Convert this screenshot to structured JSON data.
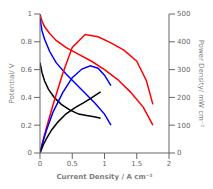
{
  "chart_data": {
    "type": "line",
    "xlabel": "Current Density / A cm⁻²",
    "ylabel": "Potential/ V",
    "y2label": "Power Density/ mW cm⁻²",
    "xlim": [
      0,
      2.0
    ],
    "ylim": [
      0,
      1.0
    ],
    "y2lim": [
      0,
      500
    ],
    "xticks": [
      0,
      0.5,
      1.0,
      1.5,
      2.0
    ],
    "yticks": [
      0,
      0.2,
      0.4,
      0.6,
      0.8,
      1.0
    ],
    "y2ticks": [
      0,
      100,
      200,
      300,
      400,
      500
    ],
    "series": [
      {
        "color": "red",
        "x": [
          0.0,
          0.03,
          0.07,
          0.15,
          0.25,
          0.4,
          0.6,
          0.8,
          1.0,
          1.2,
          1.4,
          1.6,
          1.75
        ],
        "values": [
          1.0,
          0.95,
          0.91,
          0.86,
          0.81,
          0.76,
          0.71,
          0.66,
          0.6,
          0.53,
          0.44,
          0.33,
          0.2
        ]
      },
      {
        "color": "blue",
        "x": [
          0.0,
          0.03,
          0.07,
          0.15,
          0.25,
          0.4,
          0.55,
          0.7,
          0.85,
          1.0,
          1.1
        ],
        "values": [
          0.97,
          0.88,
          0.82,
          0.73,
          0.65,
          0.57,
          0.5,
          0.43,
          0.36,
          0.28,
          0.2
        ]
      },
      {
        "color": "black",
        "x": [
          0.0,
          0.03,
          0.07,
          0.13,
          0.22,
          0.33,
          0.46,
          0.6,
          0.72,
          0.84,
          0.94
        ],
        "values": [
          0.65,
          0.58,
          0.52,
          0.46,
          0.4,
          0.35,
          0.31,
          0.28,
          0.27,
          0.26,
          0.25
        ]
      },
      {
        "color": "red",
        "axis": "y2",
        "x": [
          0.0,
          0.05,
          0.1,
          0.2,
          0.35,
          0.5,
          0.7,
          0.9,
          1.1,
          1.3,
          1.5,
          1.65,
          1.75
        ],
        "values": [
          0,
          48,
          91,
          172,
          284,
          380,
          426,
          418,
          396,
          370,
          330,
          260,
          175
        ]
      },
      {
        "color": "blue",
        "axis": "y2",
        "x": [
          0.0,
          0.05,
          0.1,
          0.2,
          0.35,
          0.5,
          0.65,
          0.78,
          0.9,
          1.0,
          1.1
        ],
        "values": [
          0,
          44,
          82,
          146,
          216,
          271,
          302,
          314,
          305,
          280,
          242
        ]
      },
      {
        "color": "black",
        "axis": "y2",
        "x": [
          0.0,
          0.05,
          0.1,
          0.18,
          0.28,
          0.4,
          0.55,
          0.68,
          0.78,
          0.88,
          0.94
        ],
        "values": [
          0,
          29,
          52,
          83,
          112,
          140,
          164,
          181,
          196,
          211,
          220
        ]
      }
    ]
  }
}
